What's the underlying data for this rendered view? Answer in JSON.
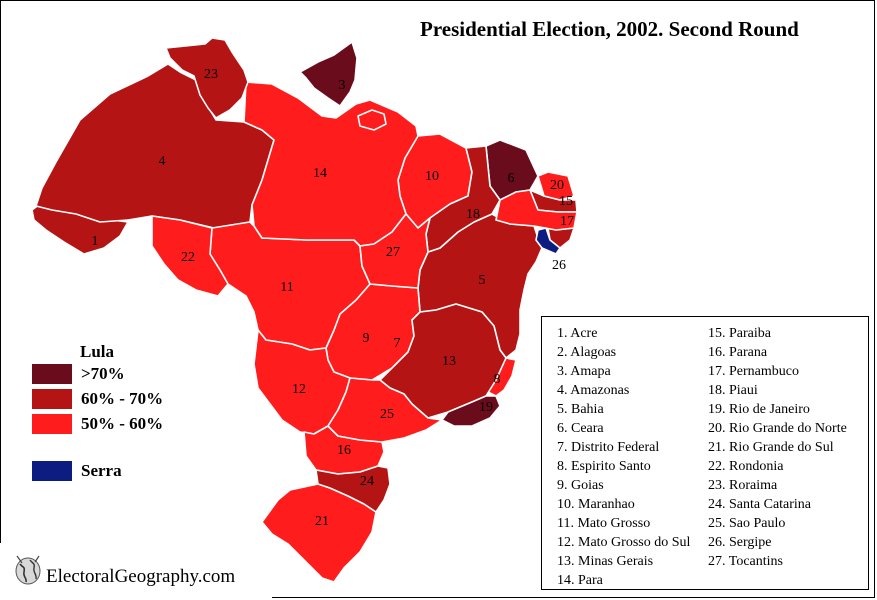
{
  "title": "Presidential Election, 2002. Second Round",
  "colors": {
    "lula_over_70": "#6b0c1c",
    "lula_60_70": "#b41414",
    "lula_50_60": "#ff1c1c",
    "serra": "#0c1c80",
    "border": "#ffffff"
  },
  "legend": {
    "title": "Lula",
    "items": [
      {
        "label": ">70%",
        "color": "#6b0c1c"
      },
      {
        "label": "60% - 70%",
        "color": "#b41414"
      },
      {
        "label": "50% - 60%",
        "color": "#ff1c1c"
      }
    ],
    "serra": {
      "label": "Serra",
      "color": "#0c1c80"
    }
  },
  "states": [
    {
      "num": "1",
      "name": "Acre",
      "category": "lula_60_70"
    },
    {
      "num": "2",
      "name": "Alagoas",
      "category": "lula_60_70"
    },
    {
      "num": "3",
      "name": "Amapa",
      "category": "lula_over_70"
    },
    {
      "num": "4",
      "name": "Amazonas",
      "category": "lula_60_70"
    },
    {
      "num": "5",
      "name": "Bahia",
      "category": "lula_60_70"
    },
    {
      "num": "6",
      "name": "Ceara",
      "category": "lula_over_70"
    },
    {
      "num": "7",
      "name": "Distrito Federal",
      "category": "lula_50_60"
    },
    {
      "num": "8",
      "name": "Espirito Santo",
      "category": "lula_50_60"
    },
    {
      "num": "9",
      "name": "Goias",
      "category": "lula_50_60"
    },
    {
      "num": "10",
      "name": "Maranhao",
      "category": "lula_50_60"
    },
    {
      "num": "11",
      "name": "Mato Grosso",
      "category": "lula_50_60"
    },
    {
      "num": "12",
      "name": "Mato Grosso do Sul",
      "category": "lula_50_60"
    },
    {
      "num": "13",
      "name": "Minas Gerais",
      "category": "lula_60_70"
    },
    {
      "num": "14",
      "name": "Para",
      "category": "lula_50_60"
    },
    {
      "num": "15",
      "name": "Paraiba",
      "category": "lula_60_70"
    },
    {
      "num": "16",
      "name": "Parana",
      "category": "lula_50_60"
    },
    {
      "num": "17",
      "name": "Pernambuco",
      "category": "lula_50_60"
    },
    {
      "num": "18",
      "name": "Piaui",
      "category": "lula_60_70"
    },
    {
      "num": "19",
      "name": "Rio de Janeiro",
      "category": "lula_over_70"
    },
    {
      "num": "20",
      "name": "Rio Grande do Norte",
      "category": "lula_50_60"
    },
    {
      "num": "21",
      "name": "Rio Grande do Sul",
      "category": "lula_50_60"
    },
    {
      "num": "22",
      "name": "Rondonia",
      "category": "lula_50_60"
    },
    {
      "num": "23",
      "name": "Roraima",
      "category": "lula_60_70"
    },
    {
      "num": "24",
      "name": "Santa Catarina",
      "category": "lula_60_70"
    },
    {
      "num": "25",
      "name": "Sao Paulo",
      "category": "lula_50_60"
    },
    {
      "num": "26",
      "name": "Sergipe",
      "category": "serra"
    },
    {
      "num": "27",
      "name": "Tocantins",
      "category": "lula_50_60"
    }
  ],
  "state_list": {
    "col1": [
      "1. Acre",
      "2. Alagoas",
      "3. Amapa",
      "4. Amazonas",
      "5. Bahia",
      "6. Ceara",
      "7. Distrito Federal",
      "8. Espirito Santo",
      "9. Goias",
      "10. Maranhao",
      "11. Mato Grosso",
      "12. Mato Grosso do Sul",
      "13. Minas Gerais",
      "14. Para"
    ],
    "col2": [
      "15. Paraiba",
      "16. Parana",
      "17. Pernambuco",
      "18. Piaui",
      "19. Rio de Janeiro",
      "20. Rio Grande do Norte",
      "21. Rio Grande do Sul",
      "22. Rondonia",
      "23. Roraima",
      "24. Santa Catarina",
      "25. Sao Paulo",
      "26. Sergipe",
      "27. Tocantins"
    ]
  },
  "logo": {
    "text": "ElectoralGeography.com",
    "icon": "globe-icon"
  }
}
